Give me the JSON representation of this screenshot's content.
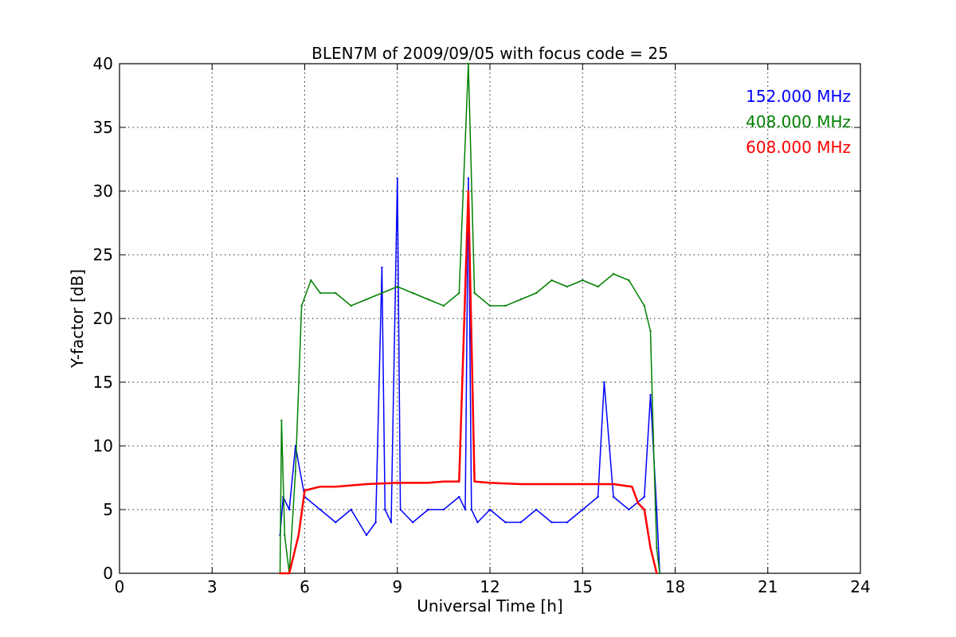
{
  "chart_data": {
    "type": "line",
    "title": "BLEN7M of 2009/09/05 with focus code = 25",
    "xlabel": "Universal Time [h]",
    "ylabel": "Y-factor [dB]",
    "xlim": [
      0,
      24
    ],
    "ylim": [
      0,
      40
    ],
    "x_ticks": [
      0,
      3,
      6,
      9,
      12,
      15,
      18,
      21,
      24
    ],
    "y_ticks": [
      0,
      5,
      10,
      15,
      20,
      25,
      30,
      35,
      40
    ],
    "grid": true,
    "legend_placement": "top-right",
    "series": [
      {
        "name": "152.000 MHz",
        "color": "#0000ff",
        "x": [
          5.2,
          5.3,
          5.5,
          5.7,
          6.0,
          6.5,
          7.0,
          7.5,
          8.0,
          8.3,
          8.5,
          8.6,
          8.8,
          9.0,
          9.1,
          9.5,
          10.0,
          10.5,
          11.0,
          11.2,
          11.3,
          11.4,
          11.6,
          12.0,
          12.5,
          13.0,
          13.5,
          14.0,
          14.5,
          15.0,
          15.5,
          15.7,
          16.0,
          16.5,
          17.0,
          17.2,
          17.4,
          17.5
        ],
        "y": [
          3,
          6,
          5,
          10,
          6,
          5,
          4,
          5,
          3,
          4,
          24,
          5,
          4,
          31,
          5,
          4,
          5,
          5,
          6,
          5,
          31,
          5,
          4,
          5,
          4,
          4,
          5,
          4,
          4,
          5,
          6,
          15,
          6,
          5,
          6,
          14,
          5,
          0
        ]
      },
      {
        "name": "408.000 MHz",
        "color": "#008000",
        "x": [
          5.2,
          5.25,
          5.35,
          5.5,
          5.7,
          5.9,
          6.2,
          6.5,
          7.0,
          7.5,
          8.0,
          8.5,
          9.0,
          9.5,
          10.0,
          10.5,
          11.0,
          11.3,
          11.5,
          12.0,
          12.5,
          13.0,
          13.5,
          14.0,
          14.5,
          15.0,
          15.5,
          16.0,
          16.5,
          17.0,
          17.2,
          17.3,
          17.4,
          17.5
        ],
        "y": [
          0,
          12,
          3,
          0,
          8,
          21,
          23,
          22,
          22,
          21,
          21.5,
          22,
          22.5,
          22,
          21.5,
          21,
          22,
          40,
          22,
          21,
          21,
          21.5,
          22,
          23,
          22.5,
          23,
          22.5,
          23.5,
          23,
          21,
          19,
          10,
          2,
          0
        ]
      },
      {
        "name": "608.000 MHz",
        "color": "#ff0000",
        "x": [
          5.2,
          5.5,
          5.8,
          6.0,
          6.5,
          7.0,
          8.0,
          9.0,
          10.0,
          10.5,
          11.0,
          11.3,
          11.5,
          12.0,
          13.0,
          14.0,
          15.0,
          16.0,
          16.6,
          16.8,
          17.0,
          17.2,
          17.4
        ],
        "y": [
          0,
          0,
          3,
          6.5,
          6.8,
          6.8,
          7.0,
          7.1,
          7.1,
          7.2,
          7.2,
          30,
          7.2,
          7.1,
          7.0,
          7.0,
          7.0,
          7.0,
          6.8,
          5.5,
          5.0,
          2,
          0
        ]
      }
    ]
  }
}
